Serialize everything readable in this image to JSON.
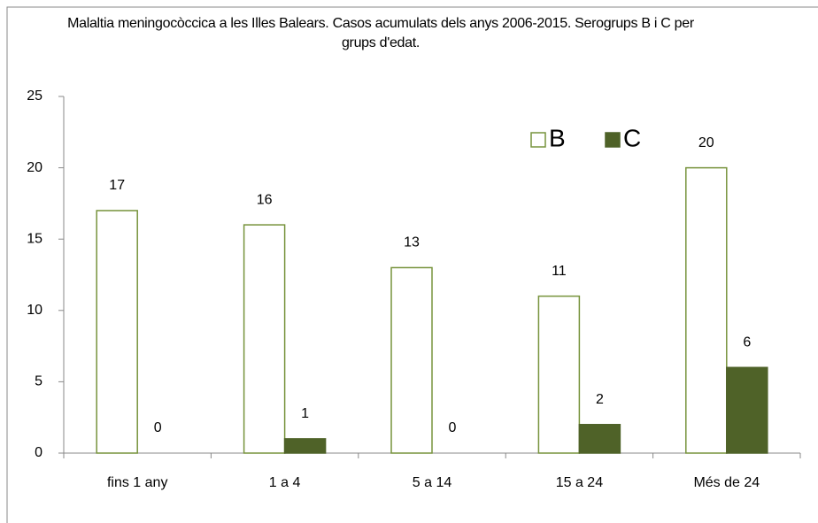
{
  "chart_data": {
    "type": "bar",
    "title": "Malaltia meningocòccica a les Illes Balears. Casos acumulats dels anys 2006-2015. Serogrups B i C per grups d'edat.",
    "categories": [
      "fins 1 any",
      "1 a 4",
      "5 a 14",
      "15 a 24",
      "Més de 24"
    ],
    "series": [
      {
        "name": "B",
        "color": "#ffffff",
        "edge": "#77933c",
        "values": [
          17,
          16,
          13,
          11,
          20
        ]
      },
      {
        "name": "C",
        "color": "#4f6228",
        "edge": "#4f6228",
        "values": [
          0,
          1,
          0,
          2,
          6
        ]
      }
    ],
    "ylim": [
      0,
      25
    ],
    "yticks": [
      0,
      5,
      10,
      15,
      20,
      25
    ],
    "legend": "top-right"
  }
}
